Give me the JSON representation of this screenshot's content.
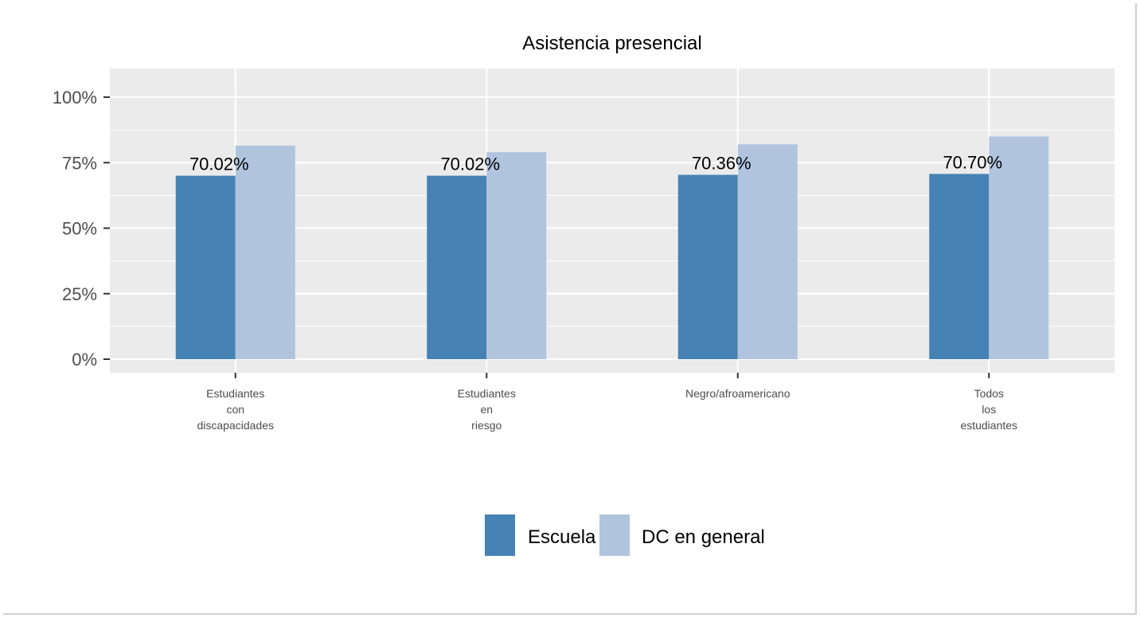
{
  "chart_data": {
    "type": "bar",
    "title": "Asistencia presencial",
    "xlabel": "",
    "ylabel": "",
    "ylim": [
      0,
      1.1
    ],
    "y_ticks": [
      {
        "value": 0,
        "label": "0%"
      },
      {
        "value": 0.25,
        "label": "25%"
      },
      {
        "value": 0.5,
        "label": "50%"
      },
      {
        "value": 0.75,
        "label": "75%"
      },
      {
        "value": 1.0,
        "label": "100%"
      }
    ],
    "categories": [
      [
        "Estudiantes",
        "con",
        "discapacidades"
      ],
      [
        "Estudiantes",
        "en",
        "riesgo"
      ],
      [
        "Negro/afroamericano"
      ],
      [
        "Todos",
        "los",
        "estudiantes"
      ]
    ],
    "series": [
      {
        "name": "Escuela",
        "color": "#4682b4",
        "values": [
          0.7002,
          0.7002,
          0.7036,
          0.707
        ],
        "data_labels": [
          "70.02%",
          "70.02%",
          "70.36%",
          "70.70%"
        ]
      },
      {
        "name": "DC en general",
        "color": "#b0c4de",
        "values": [
          0.815,
          0.79,
          0.82,
          0.85
        ]
      }
    ],
    "grid": true,
    "panel_background": "#ebebeb",
    "legend_position": "bottom"
  }
}
